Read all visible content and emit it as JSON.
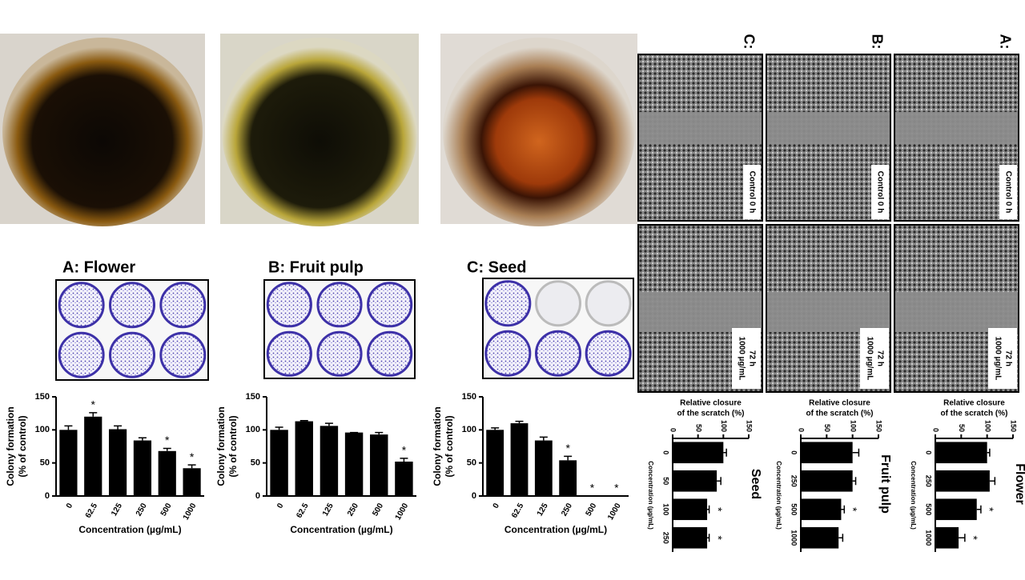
{
  "chart_data": [
    {
      "type": "bar",
      "title": "A: Flower",
      "categories": [
        "0",
        "62.5",
        "125",
        "250",
        "500",
        "1000"
      ],
      "values": [
        100,
        120,
        101,
        84,
        68,
        42
      ],
      "errors": [
        6,
        6,
        5,
        4,
        4,
        5
      ],
      "significance": [
        null,
        "*",
        null,
        null,
        "*",
        "*"
      ],
      "color": "#000000",
      "ylim": [
        0,
        150
      ],
      "yticks": [
        0,
        50,
        100,
        150
      ],
      "ylabel": [
        "Colony formation",
        "(% of control)"
      ],
      "xlabel": "Concentration (µg/mL)"
    },
    {
      "type": "bar",
      "title": "B: Fruit pulp",
      "categories": [
        "0",
        "62.5",
        "125",
        "250",
        "500",
        "1000"
      ],
      "values": [
        100,
        113,
        106,
        96,
        93,
        52
      ],
      "errors": [
        4,
        1,
        4,
        0,
        3,
        5
      ],
      "significance": [
        null,
        null,
        null,
        null,
        null,
        "*"
      ],
      "color": "#000000",
      "ylim": [
        0,
        150
      ],
      "yticks": [
        0,
        50,
        100,
        150
      ],
      "ylabel": [
        "Colony formation",
        "(% of control)"
      ],
      "xlabel": "Concentration (µg/mL)"
    },
    {
      "type": "bar",
      "title": "C: Seed",
      "categories": [
        "0",
        "62.5",
        "125",
        "250",
        "500",
        "1000"
      ],
      "values": [
        100,
        110,
        84,
        54,
        0,
        0
      ],
      "errors": [
        3,
        3,
        5,
        6,
        0,
        0
      ],
      "significance": [
        null,
        null,
        null,
        "*",
        "*",
        "*"
      ],
      "color": "#000000",
      "ylim": [
        0,
        150
      ],
      "yticks": [
        0,
        50,
        100,
        150
      ],
      "ylabel": [
        "Colony formation",
        "(% of control)"
      ],
      "xlabel": "Concentration (µg/mL)"
    },
    {
      "type": "bar",
      "horizontal": true,
      "title": "Flower",
      "categories": [
        "0",
        "250",
        "500",
        "1000"
      ],
      "values": [
        100,
        105,
        80,
        45
      ],
      "errors": [
        5,
        10,
        8,
        12
      ],
      "significance": [
        null,
        null,
        "*",
        "*"
      ],
      "color": "#000000",
      "xlim": [
        0,
        150
      ],
      "xticks": [
        0,
        50,
        100,
        150
      ],
      "xlabel": [
        "Relative closure",
        "of the scratch (%)"
      ],
      "ylabel": "Concentration (µg/mL)"
    },
    {
      "type": "bar",
      "horizontal": true,
      "title": "Fruit pulp",
      "categories": [
        "0",
        "250",
        "500",
        "1000"
      ],
      "values": [
        100,
        100,
        78,
        73
      ],
      "errors": [
        12,
        6,
        6,
        8
      ],
      "significance": [
        null,
        null,
        "*",
        null
      ],
      "color": "#000000",
      "xlim": [
        0,
        150
      ],
      "xticks": [
        0,
        50,
        100,
        150
      ],
      "xlabel": [
        "Relative closure",
        "of the scratch (%)"
      ],
      "ylabel": "Concentration (µg/mL)"
    },
    {
      "type": "bar",
      "horizontal": true,
      "title": "Seed",
      "categories": [
        "0",
        "50",
        "100",
        "250"
      ],
      "values": [
        100,
        87,
        68,
        68
      ],
      "errors": [
        6,
        8,
        4,
        4
      ],
      "significance": [
        null,
        null,
        "*",
        "*"
      ],
      "color": "#000000",
      "xlim": [
        0,
        150
      ],
      "xticks": [
        0,
        50,
        100,
        150
      ],
      "xlabel": [
        "Relative closure",
        "of the scratch (%)"
      ],
      "ylabel": "Concentration (µg/mL)"
    }
  ],
  "scratch_panels": [
    {
      "label": "A:",
      "top_label": "Control 0 h",
      "bottom_label": [
        "1000 µg/mL",
        "72 h"
      ]
    },
    {
      "label": "B:",
      "top_label": "Control 0 h",
      "bottom_label": [
        "1000 µg/mL",
        "72 h"
      ]
    },
    {
      "label": "C:",
      "top_label": "Control 0 h",
      "bottom_label": [
        "1000 µg/mL",
        "72 h"
      ]
    }
  ]
}
